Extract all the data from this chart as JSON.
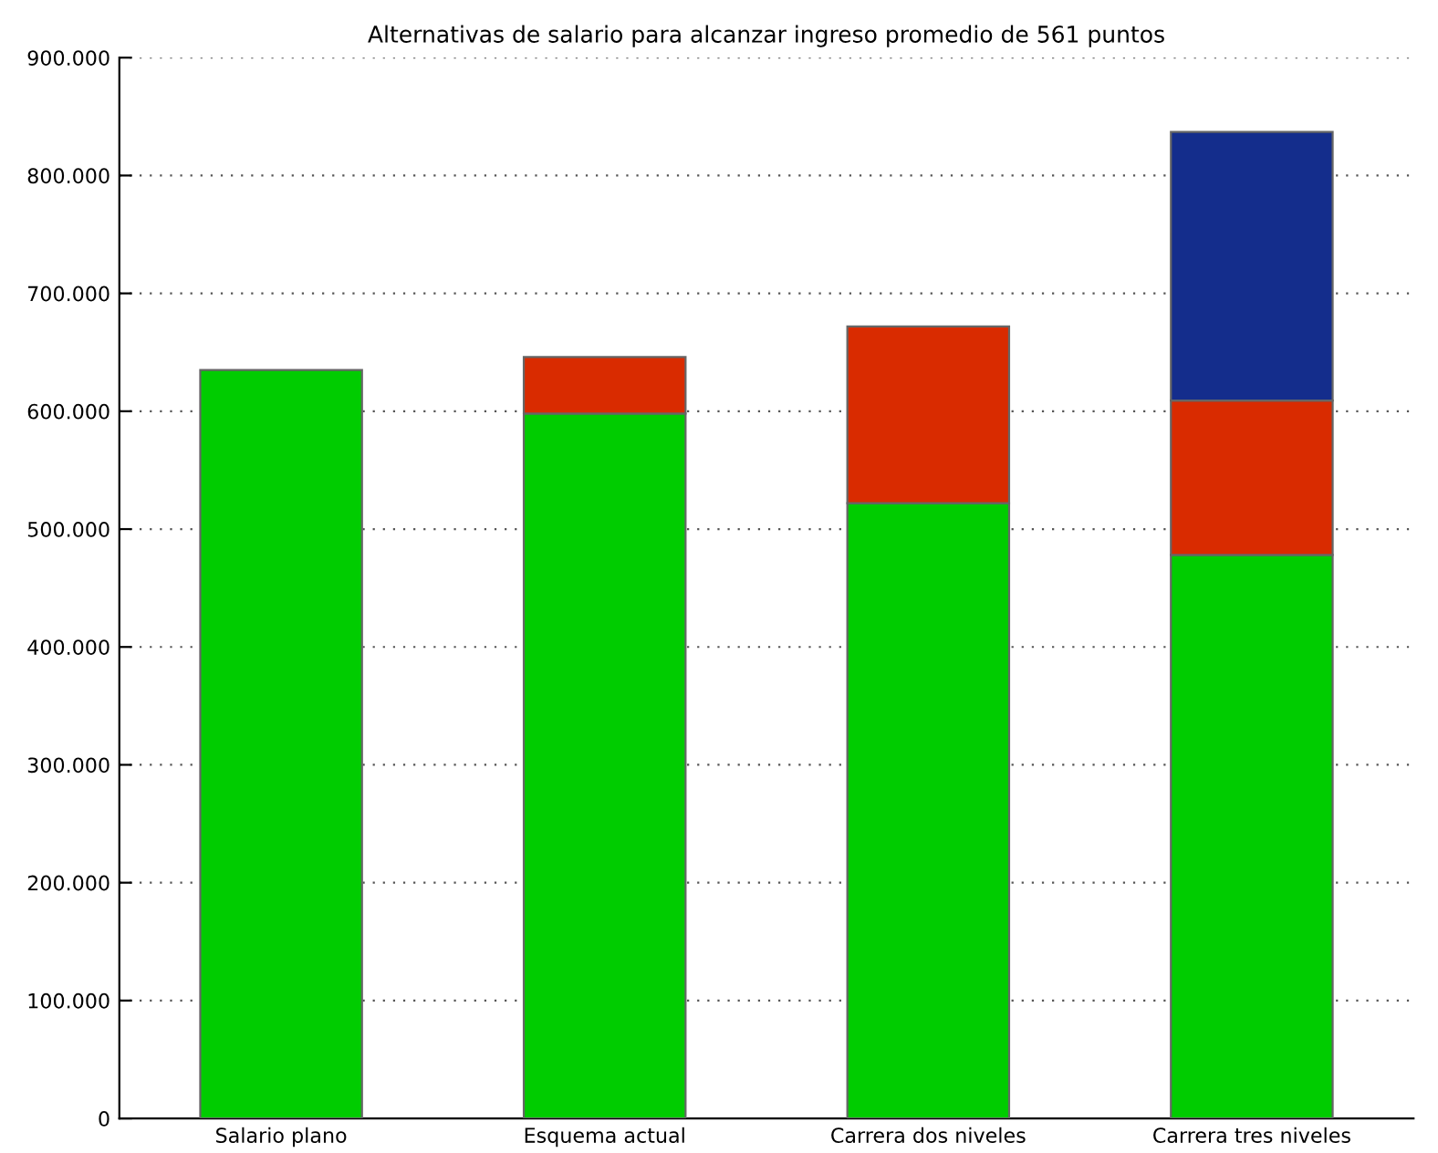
{
  "chart_data": {
    "type": "bar",
    "title": "Alternativas de salario para alcanzar ingreso promedio de 561 puntos",
    "categories": [
      "Salario plano",
      "Esquema actual",
      "Carrera dos niveles",
      "Carrera tres niveles"
    ],
    "stacked": true,
    "series": [
      {
        "color": "#00cc00",
        "values": [
          635000,
          598000,
          522000,
          478000
        ]
      },
      {
        "color": "#d92b00",
        "values": [
          null,
          48000,
          150000,
          131000
        ]
      },
      {
        "color": "#142d8c",
        "values": [
          null,
          null,
          null,
          228000
        ]
      }
    ],
    "ylim": [
      0,
      900000
    ],
    "yticks": [
      0,
      {
        "value": 100000,
        "label": "100.000"
      },
      {
        "value": 200000,
        "label": "200.000"
      },
      {
        "value": 300000,
        "label": "300.000"
      },
      {
        "value": 400000,
        "label": "400.000"
      },
      {
        "value": 500000,
        "label": "500.000"
      },
      {
        "value": 600000,
        "label": "600.000"
      },
      {
        "value": 700000,
        "label": "700.000"
      },
      {
        "value": 800000,
        "label": "800.000"
      },
      {
        "value": 900000,
        "label": "900.000"
      }
    ],
    "grid": "y",
    "legend": false
  }
}
